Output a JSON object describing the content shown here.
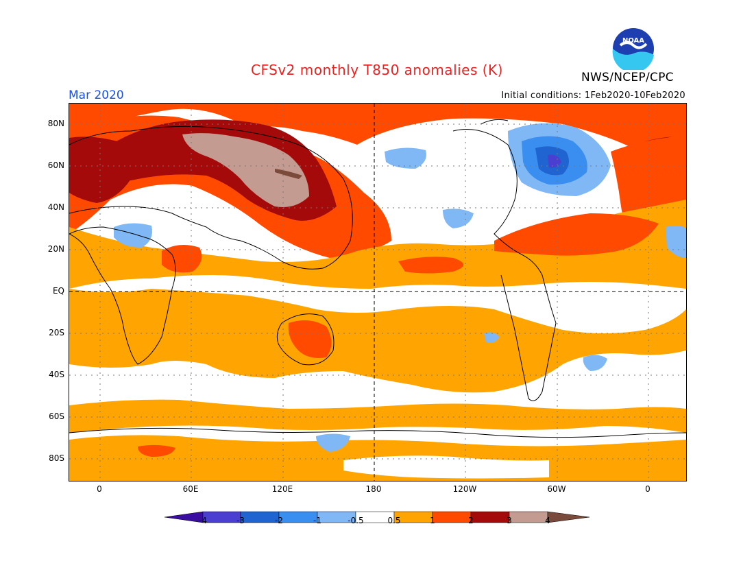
{
  "title": "CFSv2 monthly T850 anomalies (K)",
  "month_label": "Mar 2020",
  "agency": "NWS/NCEP/CPC",
  "logo_text": "NOAA",
  "initial_conditions": "Initial conditions: 1Feb2020-10Feb2020",
  "lat_labels": [
    "80N",
    "60N",
    "40N",
    "20N",
    "EQ",
    "20S",
    "40S",
    "60S",
    "80S"
  ],
  "lon_labels": [
    "0",
    "60E",
    "120E",
    "180",
    "120W",
    "60W",
    "0"
  ],
  "legend": {
    "labels": [
      "-4",
      "-3",
      "-2",
      "-1",
      "-0.5",
      "0.5",
      "1",
      "2",
      "3",
      "4"
    ],
    "colors": [
      "#3a0fa0",
      "#4a3fd0",
      "#1f64d0",
      "#3a8ef0",
      "#7fb8f5",
      "#ffffff",
      "#ffa400",
      "#ff4a00",
      "#a50a0a",
      "#c49b90",
      "#7a4a3a"
    ]
  },
  "colors": {
    "title": "#e8221f",
    "month": "#1a4fe0",
    "warm1": "#ffa400",
    "warm2": "#ff4a00",
    "warm3": "#a50a0a",
    "warm4": "#c49b90",
    "warm5": "#7a4a3a",
    "cool1": "#7fb8f5",
    "cool2": "#3a8ef0",
    "cool3": "#1f64d0",
    "cool4": "#4a3fd0"
  }
}
